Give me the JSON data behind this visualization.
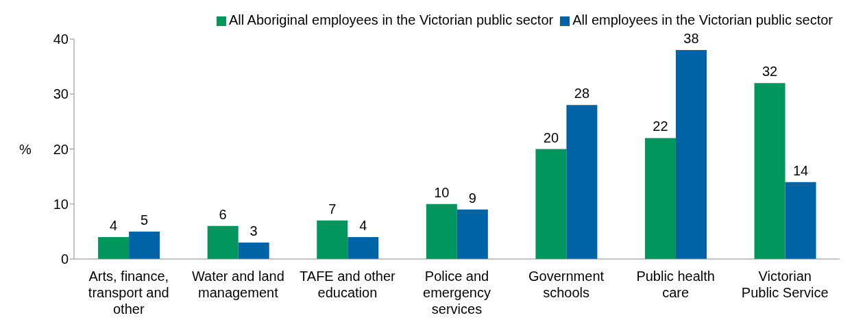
{
  "chart_data": {
    "type": "bar",
    "categories": [
      "Arts, finance, transport and other",
      "Water and land management",
      "TAFE and other education",
      "Police and emergency services",
      "Government schools",
      "Public health care",
      "Victorian Public Service"
    ],
    "ylabel": "%",
    "ylim": [
      0,
      40
    ],
    "yticks": [
      0,
      10,
      20,
      30,
      40
    ],
    "grid": false,
    "legend": "top",
    "data_labels": true,
    "series": [
      {
        "name": "All Aboriginal employees in the Victorian public sector",
        "color": "#00965e",
        "values": [
          4,
          6,
          7,
          10,
          20,
          22,
          32
        ]
      },
      {
        "name": "All employees in the Victorian public sector",
        "color": "#0063a6",
        "values": [
          5,
          3,
          4,
          9,
          28,
          38,
          14
        ]
      }
    ]
  }
}
